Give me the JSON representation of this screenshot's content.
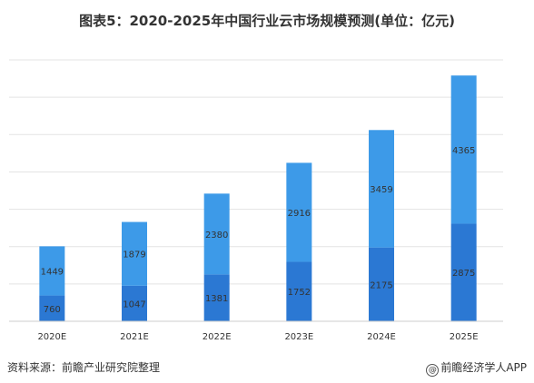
{
  "title": "图表5：2020-2025年中国行业云市场规模预测(单位：亿元)",
  "footer": {
    "source": "资料来源：前瞻产业研究院整理",
    "brand": "前瞻经济学人APP",
    "brand_icon": "at-icon"
  },
  "colors": {
    "top": "#3d9ae8",
    "bottom": "#2b78d3",
    "grid": "#e3e3e3",
    "text": "#333333"
  },
  "chart_data": {
    "type": "bar",
    "stacked": true,
    "categories": [
      "2020E",
      "2021E",
      "2022E",
      "2023E",
      "2024E",
      "2025E"
    ],
    "series": [
      {
        "values": [
          760,
          1047,
          1381,
          1752,
          2175,
          2875
        ]
      },
      {
        "values": [
          1449,
          1879,
          2380,
          2916,
          3459,
          4365
        ]
      }
    ],
    "ylim": [
      0,
      7700
    ],
    "grid": true,
    "legend": "none"
  }
}
